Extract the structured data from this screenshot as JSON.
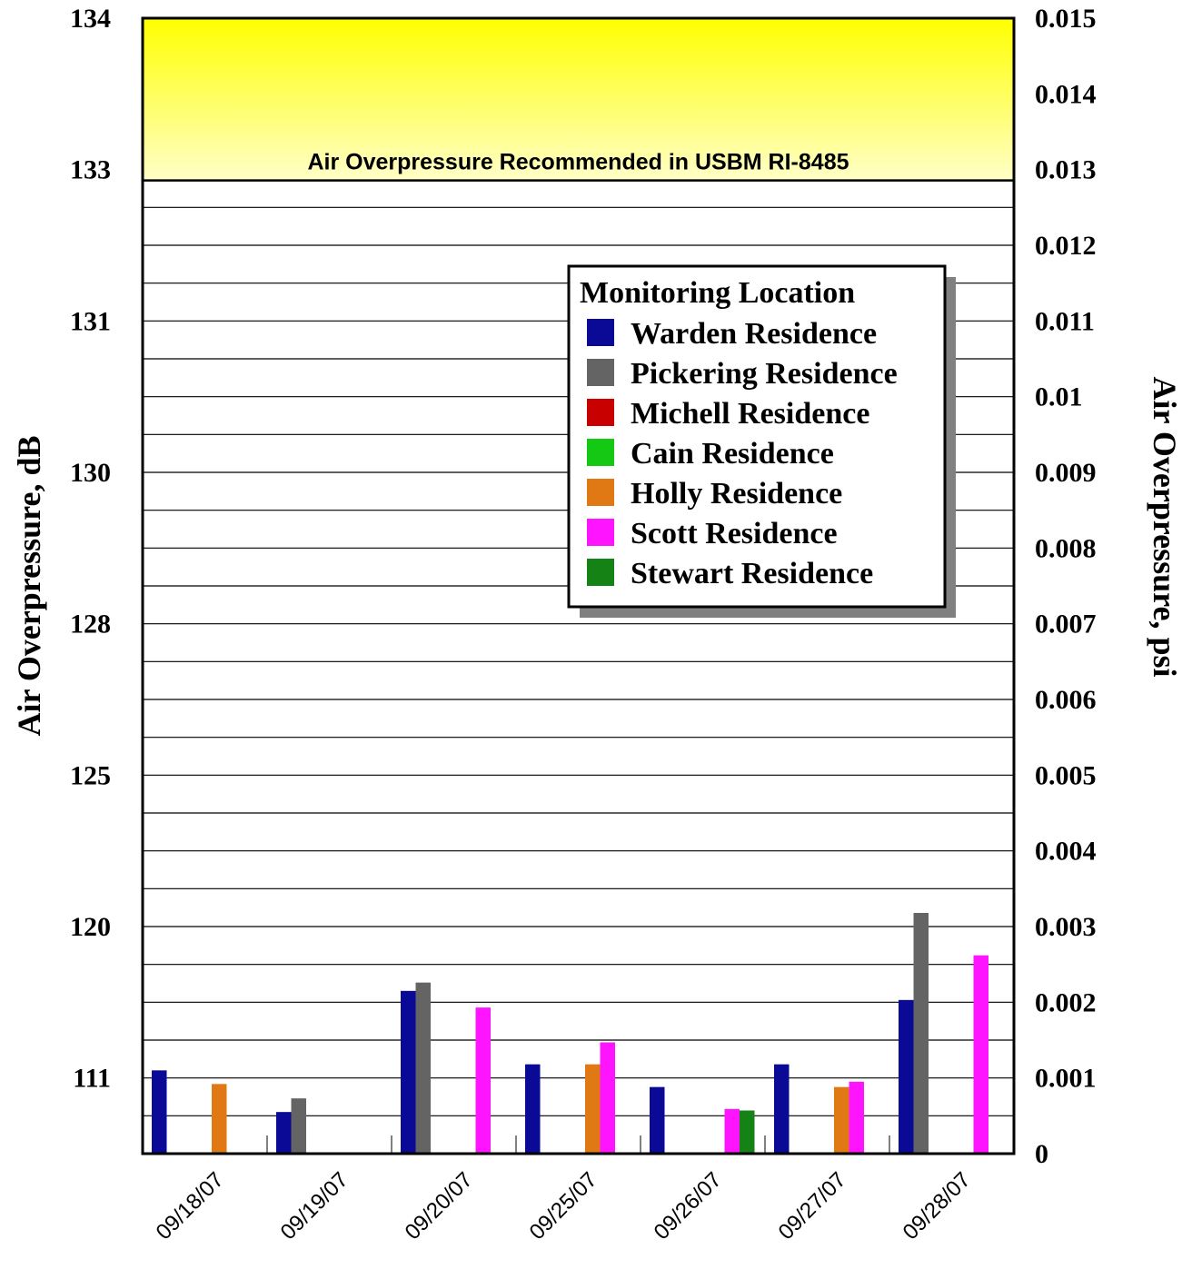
{
  "chart_data": {
    "type": "bar",
    "categories": [
      "09/18/07",
      "09/19/07",
      "09/20/07",
      "09/25/07",
      "09/26/07",
      "09/27/07",
      "09/28/07"
    ],
    "series": [
      {
        "name": "Warden Residence",
        "color": "#0a0a96",
        "values": [
          0.0011,
          0.00055,
          0.00215,
          0.00118,
          0.00088,
          0.00118,
          0.00203
        ]
      },
      {
        "name": "Pickering Residence",
        "color": "#646464",
        "values": [
          null,
          0.00073,
          0.00226,
          null,
          null,
          null,
          0.00318
        ]
      },
      {
        "name": "Michell Residence",
        "color": "#c80000",
        "values": [
          null,
          null,
          null,
          null,
          null,
          null,
          null
        ]
      },
      {
        "name": "Cain Residence",
        "color": "#14c814",
        "values": [
          null,
          null,
          null,
          null,
          null,
          null,
          null
        ]
      },
      {
        "name": "Holly Residence",
        "color": "#e07814",
        "values": [
          0.00092,
          null,
          null,
          0.00118,
          null,
          0.00088,
          null
        ]
      },
      {
        "name": "Scott Residence",
        "color": "#ff14ff",
        "values": [
          null,
          null,
          0.00193,
          0.00147,
          0.00059,
          0.00095,
          0.00262
        ]
      },
      {
        "name": "Stewart Residence",
        "color": "#148214",
        "values": [
          null,
          null,
          null,
          null,
          0.00057,
          null,
          null
        ]
      }
    ],
    "ylabel_left": "Air Overpressure, dB",
    "ylabel_right": "Air Overpressure, psi",
    "ylim": [
      0,
      0.015
    ],
    "yticks_right": [
      "0",
      "0.001",
      "0.002",
      "0.003",
      "0.004",
      "0.005",
      "0.006",
      "0.007",
      "0.008",
      "0.009",
      "0.01",
      "0.011",
      "0.012",
      "0.013",
      "0.014",
      "0.015"
    ],
    "yticks_left": [
      {
        "label": "111",
        "psi": 0.001
      },
      {
        "label": "120",
        "psi": 0.003
      },
      {
        "label": "125",
        "psi": 0.005
      },
      {
        "label": "128",
        "psi": 0.007
      },
      {
        "label": "130",
        "psi": 0.009
      },
      {
        "label": "131",
        "psi": 0.011
      },
      {
        "label": "133",
        "psi": 0.013
      },
      {
        "label": "134",
        "psi": 0.015
      }
    ],
    "threshold_band": {
      "from": 0.012857,
      "to": 0.015,
      "label": "Air Overpressure Recommended in USBM RI-8485",
      "color": "#ffff00"
    },
    "legend": {
      "title": "Monitoring Location",
      "placement": "top-right"
    },
    "grid": true
  }
}
